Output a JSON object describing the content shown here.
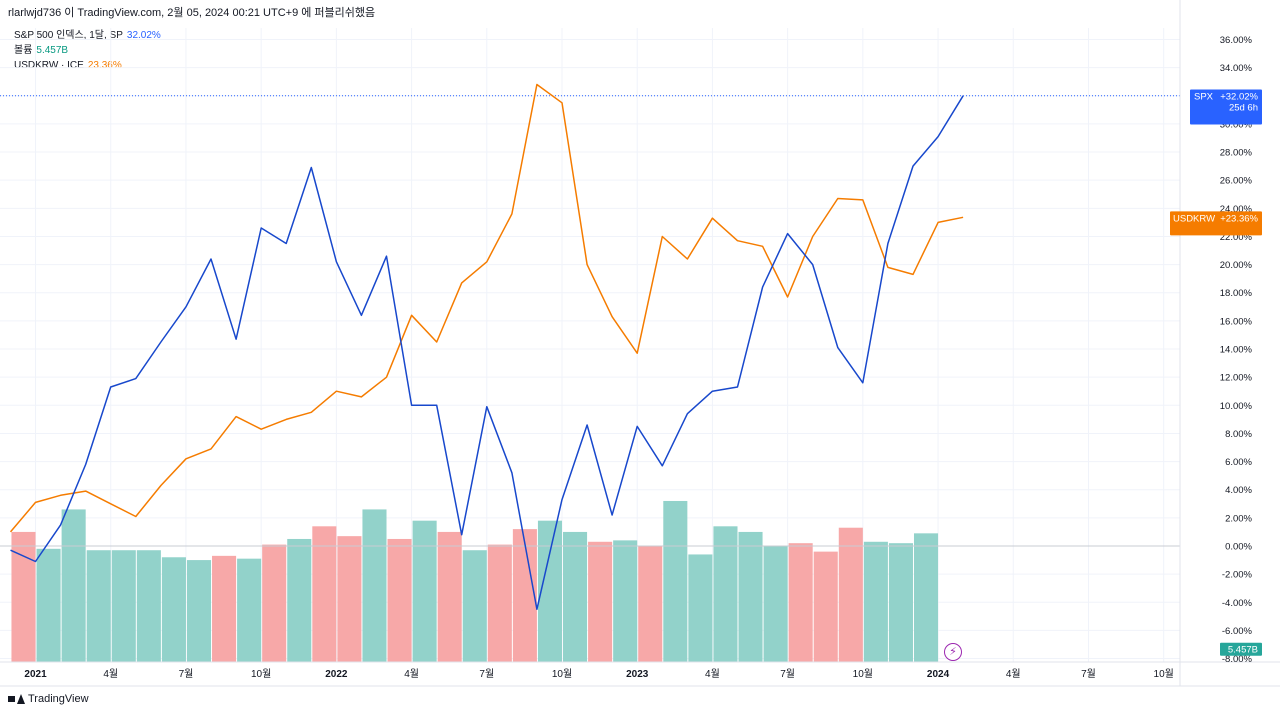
{
  "header": {
    "text": "rlarlwjd736 이 TradingView.com, 2월 05, 2024 00:21 UTC+9 에 퍼블리쉬했음"
  },
  "legend": {
    "spx_name": "S&P 500 인덱스, 1달, SP",
    "spx_value": "32.02%",
    "volume_name": "볼륨",
    "volume_value": "5.457B",
    "krw_name": "USDKRW · ICE",
    "krw_value": "23.36%"
  },
  "footer": {
    "brand": "TradingView"
  },
  "icons": {
    "flash": "flash-icon",
    "logo": "tradingview-logo-icon"
  },
  "chart_data": {
    "type": "line",
    "y_axis": {
      "min": -8,
      "max": 36,
      "step": 2,
      "unit": "%",
      "ticks": [
        "36.00%",
        "34.00%",
        "32.00%",
        "30.00%",
        "28.00%",
        "26.00%",
        "24.00%",
        "22.00%",
        "20.00%",
        "18.00%",
        "16.00%",
        "14.00%",
        "12.00%",
        "10.00%",
        "8.00%",
        "6.00%",
        "4.00%",
        "2.00%",
        "0.00%",
        "-2.00%",
        "-4.00%",
        "-6.00%",
        "-8.00%"
      ]
    },
    "x_ticks": [
      {
        "label": "2021",
        "index": 0.5,
        "bold": true
      },
      {
        "label": "4월",
        "index": 3.5
      },
      {
        "label": "7월",
        "index": 6.5
      },
      {
        "label": "10월",
        "index": 9.5
      },
      {
        "label": "2022",
        "index": 12.5,
        "bold": true
      },
      {
        "label": "4월",
        "index": 15.5
      },
      {
        "label": "7월",
        "index": 18.5
      },
      {
        "label": "10월",
        "index": 21.5
      },
      {
        "label": "2023",
        "index": 24.5,
        "bold": true
      },
      {
        "label": "4월",
        "index": 27.5
      },
      {
        "label": "7월",
        "index": 30.5
      },
      {
        "label": "10월",
        "index": 33.5
      },
      {
        "label": "2024",
        "index": 36.5,
        "bold": true
      },
      {
        "label": "4월",
        "index": 39.5
      },
      {
        "label": "7월",
        "index": 42.5
      },
      {
        "label": "10월",
        "index": 45.5
      }
    ],
    "series": [
      {
        "name": "SPX",
        "color": "#1848cc",
        "x_start": -0.5,
        "values": [
          -0.3,
          -1.1,
          1.5,
          5.8,
          11.3,
          11.9,
          14.5,
          17.0,
          20.4,
          14.7,
          22.6,
          21.5,
          26.9,
          20.2,
          16.4,
          20.6,
          10.0,
          10.0,
          0.8,
          9.9,
          5.2,
          -4.5,
          3.3,
          8.6,
          2.2,
          8.5,
          5.7,
          9.4,
          11.0,
          11.3,
          18.4,
          22.2,
          20.0,
          14.1,
          11.6,
          21.5,
          27.0,
          29.1,
          32.0
        ]
      },
      {
        "name": "USDKRW",
        "color": "#f57c00",
        "x_start": -0.5,
        "values": [
          1.0,
          3.1,
          3.6,
          3.9,
          3.0,
          2.1,
          4.3,
          6.2,
          6.9,
          9.2,
          8.3,
          9.0,
          9.5,
          11.0,
          10.6,
          12.0,
          16.4,
          14.5,
          18.7,
          20.2,
          23.6,
          32.8,
          31.5,
          20.0,
          16.3,
          13.7,
          22.0,
          20.4,
          23.3,
          21.7,
          21.3,
          17.7,
          22.0,
          24.7,
          24.6,
          19.8,
          19.3,
          23.0,
          23.36
        ]
      }
    ],
    "volume": {
      "name": "볼륨",
      "x_start": 0,
      "values": [
        1.0,
        -0.2,
        2.6,
        -0.3,
        -0.3,
        -0.3,
        -0.8,
        -1.0,
        -0.7,
        -0.9,
        0.1,
        0.5,
        1.4,
        0.7,
        2.6,
        0.5,
        1.8,
        1.0,
        -0.3,
        0.1,
        1.2,
        1.8,
        1.0,
        0.3,
        0.4,
        0.0,
        3.2,
        -0.6,
        1.4,
        1.0,
        0.0,
        0.2,
        -0.4,
        1.3,
        0.3,
        0.2,
        0.9
      ],
      "colors": [
        "red",
        "teal",
        "teal",
        "teal",
        "teal",
        "teal",
        "teal",
        "teal",
        "red",
        "teal",
        "red",
        "teal",
        "red",
        "red",
        "teal",
        "red",
        "teal",
        "red",
        "teal",
        "red",
        "red",
        "teal",
        "teal",
        "red",
        "teal",
        "red",
        "teal",
        "teal",
        "teal",
        "teal",
        "teal",
        "red",
        "red",
        "red",
        "teal",
        "teal",
        "teal"
      ]
    },
    "price_labels": [
      {
        "name": "SPX",
        "lines": [
          "SPX",
          "+32.02%",
          "25d 6h"
        ],
        "value": 32.02,
        "color": "#2962ff"
      },
      {
        "name": "USDKRW",
        "lines": [
          "USDKRW",
          "+23.36%"
        ],
        "value": 23.36,
        "color": "#f57c00"
      },
      {
        "name": "VOLUME",
        "lines": [
          "5.457B"
        ],
        "value": -7.3,
        "color": "#26a69a"
      }
    ]
  }
}
